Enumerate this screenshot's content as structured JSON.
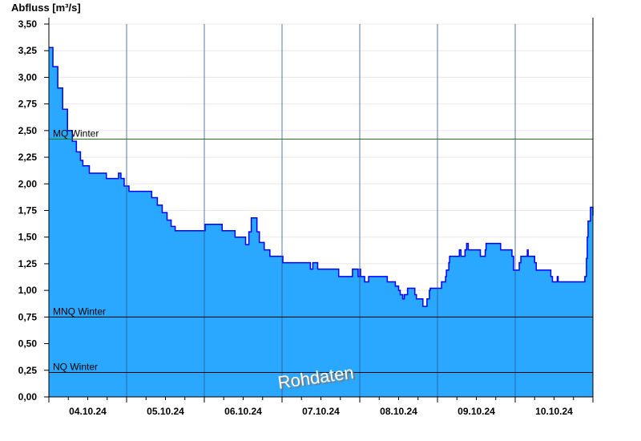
{
  "chart_data": {
    "type": "area",
    "ylabel": "Abfluss [m³/s]",
    "xlim": [
      "2024-10-04 00:00",
      "2024-10-11 00:00"
    ],
    "ylim": [
      0,
      3.5
    ],
    "yticks": [
      "0,00",
      "0,25",
      "0,50",
      "0,75",
      "1,00",
      "1,25",
      "1,50",
      "1,75",
      "2,00",
      "2,25",
      "2,50",
      "2,75",
      "3,00",
      "3,25",
      "3,50"
    ],
    "xtick_labels": [
      "04.10.24",
      "05.10.24",
      "06.10.24",
      "07.10.24",
      "08.10.24",
      "09.10.24",
      "10.10.24"
    ],
    "grid": true,
    "watermark": "Rohdaten",
    "colors": {
      "fill": "#2aa8ff",
      "line": "#0000ff",
      "mq_line": "#1a7a1a",
      "ref_line": "#000000",
      "day_line": "#2a5a8a",
      "grid": "#e8e8e8"
    },
    "reference_lines": [
      {
        "label": "MQ Winter",
        "value": 2.42
      },
      {
        "label": "MNQ Winter",
        "value": 0.75
      },
      {
        "label": "NQ Winter",
        "value": 0.23
      }
    ],
    "points": [
      [
        "2024-10-04 00:00",
        3.28
      ],
      [
        "2024-10-04 01:15",
        3.1
      ],
      [
        "2024-10-04 02:45",
        2.9
      ],
      [
        "2024-10-04 04:15",
        2.7
      ],
      [
        "2024-10-04 05:45",
        2.5
      ],
      [
        "2024-10-04 07:15",
        2.4
      ],
      [
        "2024-10-04 08:30",
        2.3
      ],
      [
        "2024-10-04 09:45",
        2.22
      ],
      [
        "2024-10-04 10:30",
        2.17
      ],
      [
        "2024-10-04 12:30",
        2.1
      ],
      [
        "2024-10-04 17:00",
        2.1
      ],
      [
        "2024-10-04 17:45",
        2.05
      ],
      [
        "2024-10-04 20:45",
        2.05
      ],
      [
        "2024-10-04 21:30",
        2.1
      ],
      [
        "2024-10-04 22:15",
        2.05
      ],
      [
        "2024-10-04 23:15",
        1.98
      ],
      [
        "2024-10-05 00:45",
        1.93
      ],
      [
        "2024-10-05 06:45",
        1.93
      ],
      [
        "2024-10-05 07:45",
        1.87
      ],
      [
        "2024-10-05 09:30",
        1.8
      ],
      [
        "2024-10-05 11:00",
        1.73
      ],
      [
        "2024-10-05 12:30",
        1.66
      ],
      [
        "2024-10-05 13:45",
        1.6
      ],
      [
        "2024-10-05 15:00",
        1.56
      ],
      [
        "2024-10-05 23:45",
        1.56
      ],
      [
        "2024-10-06 00:15",
        1.62
      ],
      [
        "2024-10-06 04:45",
        1.62
      ],
      [
        "2024-10-06 05:30",
        1.56
      ],
      [
        "2024-10-06 09:00",
        1.56
      ],
      [
        "2024-10-06 09:30",
        1.5
      ],
      [
        "2024-10-06 12:00",
        1.5
      ],
      [
        "2024-10-06 12:45",
        1.43
      ],
      [
        "2024-10-06 13:45",
        1.55
      ],
      [
        "2024-10-06 14:30",
        1.68
      ],
      [
        "2024-10-06 15:30",
        1.68
      ],
      [
        "2024-10-06 16:15",
        1.55
      ],
      [
        "2024-10-06 17:00",
        1.45
      ],
      [
        "2024-10-06 18:30",
        1.38
      ],
      [
        "2024-10-06 20:15",
        1.32
      ],
      [
        "2024-10-06 23:30",
        1.32
      ],
      [
        "2024-10-07 00:15",
        1.26
      ],
      [
        "2024-10-07 07:45",
        1.26
      ],
      [
        "2024-10-07 08:45",
        1.2
      ],
      [
        "2024-10-07 09:30",
        1.26
      ],
      [
        "2024-10-07 10:30",
        1.26
      ],
      [
        "2024-10-07 11:00",
        1.2
      ],
      [
        "2024-10-07 17:15",
        1.2
      ],
      [
        "2024-10-07 17:30",
        1.13
      ],
      [
        "2024-10-07 21:15",
        1.13
      ],
      [
        "2024-10-07 21:45",
        1.2
      ],
      [
        "2024-10-07 23:15",
        1.2
      ],
      [
        "2024-10-07 23:30",
        1.13
      ],
      [
        "2024-10-08 00:00",
        1.2
      ],
      [
        "2024-10-08 00:15",
        1.13
      ],
      [
        "2024-10-08 01:30",
        1.08
      ],
      [
        "2024-10-08 02:45",
        1.13
      ],
      [
        "2024-10-08 07:45",
        1.13
      ],
      [
        "2024-10-08 08:30",
        1.08
      ],
      [
        "2024-10-08 10:30",
        1.08
      ],
      [
        "2024-10-08 11:00",
        1.04
      ],
      [
        "2024-10-08 12:00",
        1.0
      ],
      [
        "2024-10-08 12:30",
        0.96
      ],
      [
        "2024-10-08 13:15",
        0.92
      ],
      [
        "2024-10-08 13:45",
        0.96
      ],
      [
        "2024-10-08 14:30",
        0.96
      ],
      [
        "2024-10-08 14:45",
        1.02
      ],
      [
        "2024-10-08 16:30",
        1.02
      ],
      [
        "2024-10-08 17:00",
        0.96
      ],
      [
        "2024-10-08 17:30",
        0.92
      ],
      [
        "2024-10-08 19:15",
        0.92
      ],
      [
        "2024-10-08 19:30",
        0.85
      ],
      [
        "2024-10-08 20:15",
        0.85
      ],
      [
        "2024-10-08 20:45",
        0.92
      ],
      [
        "2024-10-08 21:30",
        1.0
      ],
      [
        "2024-10-08 21:45",
        1.02
      ],
      [
        "2024-10-09 00:15",
        1.02
      ],
      [
        "2024-10-09 01:15",
        1.08
      ],
      [
        "2024-10-09 02:30",
        1.13
      ],
      [
        "2024-10-09 02:45",
        1.19
      ],
      [
        "2024-10-09 03:30",
        1.26
      ],
      [
        "2024-10-09 03:45",
        1.32
      ],
      [
        "2024-10-09 06:15",
        1.32
      ],
      [
        "2024-10-09 06:45",
        1.38
      ],
      [
        "2024-10-09 07:15",
        1.32
      ],
      [
        "2024-10-09 08:15",
        1.32
      ],
      [
        "2024-10-09 08:30",
        1.38
      ],
      [
        "2024-10-09 09:00",
        1.44
      ],
      [
        "2024-10-09 09:30",
        1.38
      ],
      [
        "2024-10-09 13:00",
        1.38
      ],
      [
        "2024-10-09 13:15",
        1.32
      ],
      [
        "2024-10-09 14:15",
        1.32
      ],
      [
        "2024-10-09 14:45",
        1.38
      ],
      [
        "2024-10-09 15:00",
        1.44
      ],
      [
        "2024-10-09 19:15",
        1.44
      ],
      [
        "2024-10-09 19:30",
        1.38
      ],
      [
        "2024-10-09 22:30",
        1.38
      ],
      [
        "2024-10-09 23:00",
        1.32
      ],
      [
        "2024-10-09 23:30",
        1.19
      ],
      [
        "2024-10-10 00:45",
        1.19
      ],
      [
        "2024-10-10 01:15",
        1.26
      ],
      [
        "2024-10-10 01:45",
        1.32
      ],
      [
        "2024-10-10 03:15",
        1.32
      ],
      [
        "2024-10-10 03:45",
        1.38
      ],
      [
        "2024-10-10 04:00",
        1.32
      ],
      [
        "2024-10-10 05:30",
        1.32
      ],
      [
        "2024-10-10 06:00",
        1.26
      ],
      [
        "2024-10-10 06:30",
        1.19
      ],
      [
        "2024-10-10 10:30",
        1.19
      ],
      [
        "2024-10-10 11:00",
        1.13
      ],
      [
        "2024-10-10 11:30",
        1.08
      ],
      [
        "2024-10-10 12:45",
        1.08
      ],
      [
        "2024-10-10 13:00",
        1.13
      ],
      [
        "2024-10-10 13:15",
        1.08
      ],
      [
        "2024-10-10 21:15",
        1.08
      ],
      [
        "2024-10-10 21:30",
        1.13
      ],
      [
        "2024-10-10 22:00",
        1.3
      ],
      [
        "2024-10-10 22:15",
        1.5
      ],
      [
        "2024-10-10 22:30",
        1.65
      ],
      [
        "2024-10-10 23:15",
        1.78
      ],
      [
        "2024-10-11 00:00",
        1.7
      ]
    ]
  }
}
